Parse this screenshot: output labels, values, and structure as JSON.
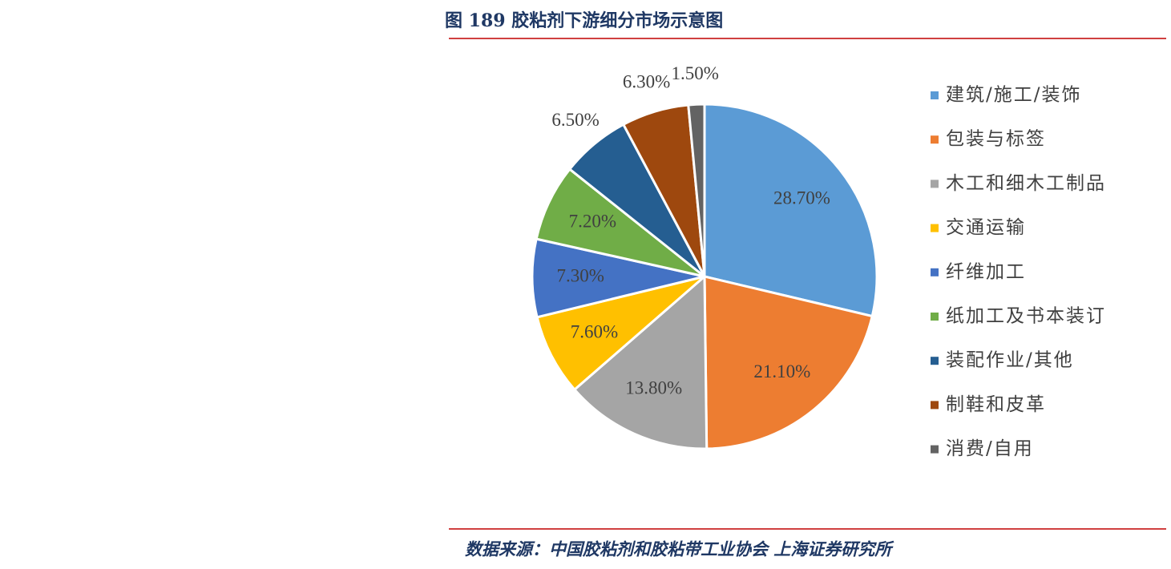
{
  "chart_data": {
    "type": "pie",
    "title": "图 189  胶粘剂下游细分市场示意图",
    "source": "数据来源：中国胶粘剂和胶粘带工业协会 上海证券研究所",
    "categories": [
      "建筑/施工/装饰",
      "包装与标签",
      "木工和细木工制品",
      "交通运输",
      "纤维加工",
      "纸加工及书本装订",
      "装配作业/其他",
      "制鞋和皮革",
      "消费/自用"
    ],
    "values": [
      28.7,
      21.1,
      13.8,
      7.6,
      7.3,
      7.2,
      6.5,
      6.3,
      1.5
    ],
    "value_labels": [
      "28.70%",
      "21.10%",
      "13.80%",
      "7.60%",
      "7.30%",
      "7.20%",
      "6.50%",
      "6.30%",
      "1.50%"
    ],
    "colors": [
      "#5b9bd5",
      "#ed7d31",
      "#a5a5a5",
      "#ffc000",
      "#4472c4",
      "#70ad47",
      "#255e91",
      "#9e480e",
      "#636363"
    ],
    "legend": "right"
  }
}
